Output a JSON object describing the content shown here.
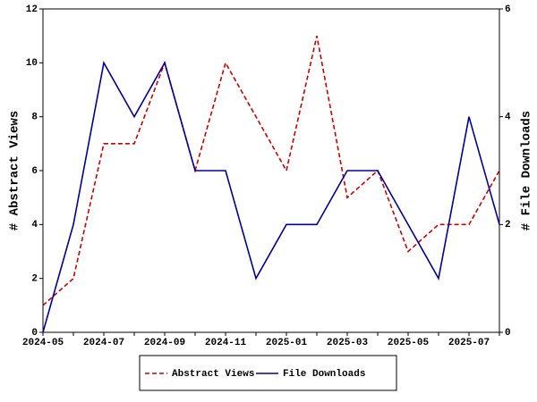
{
  "chart_data": {
    "type": "line",
    "y_label": "# Abstract Views",
    "y2_label": "# File Downloads",
    "categories": [
      "2024-05",
      null,
      "2024-07",
      null,
      "2024-09",
      null,
      "2024-11",
      null,
      "2025-01",
      null,
      "2025-03",
      null,
      "2025-05",
      null,
      "2025-07",
      null
    ],
    "series": [
      {
        "name": "Abstract Views",
        "color": "#cc0000",
        "dash": true,
        "values": [
          1,
          2,
          7,
          7,
          10,
          6,
          10,
          8,
          6,
          11,
          5,
          6,
          3,
          4,
          4,
          6
        ]
      },
      {
        "name": "File Downloads",
        "color": "#000099",
        "dash": false,
        "axis": "y2",
        "values": [
          0,
          2,
          5,
          4,
          5,
          3,
          3,
          1,
          2,
          2,
          3,
          3,
          2,
          1,
          4,
          2
        ]
      }
    ],
    "ylim": [
      0,
      12
    ],
    "yticks": [
      0,
      2,
      4,
      6,
      8,
      10,
      12
    ],
    "y2lim": [
      0,
      6
    ],
    "y2ticks": [
      0,
      2,
      4,
      6
    ]
  }
}
